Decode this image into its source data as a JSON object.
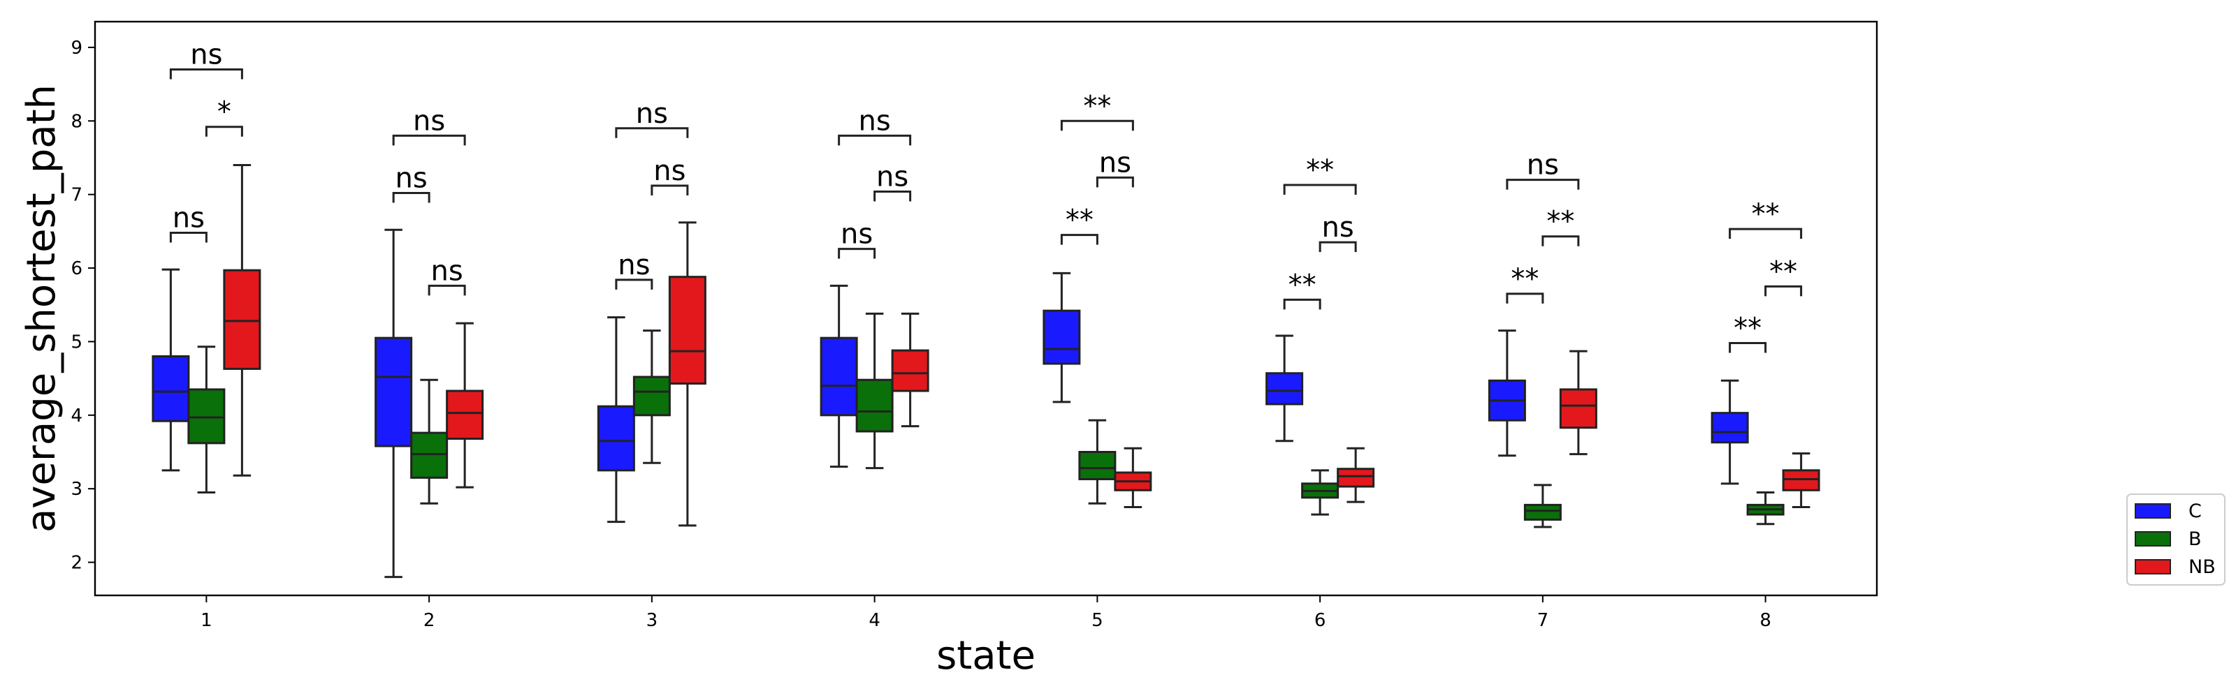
{
  "chart_data": {
    "type": "box",
    "xlabel": "state",
    "ylabel": "average_shortest_path",
    "ylim": [
      1.55,
      9.35
    ],
    "yticks": [
      "2",
      "3",
      "4",
      "5",
      "6",
      "7",
      "8",
      "9"
    ],
    "categories": [
      "1",
      "2",
      "3",
      "4",
      "5",
      "6",
      "7",
      "8"
    ],
    "grid": false,
    "legend_position": "outside-right-bottom",
    "series": [
      {
        "name": "C",
        "color": "#1a1aff",
        "boxes": [
          {
            "whislo": 3.25,
            "q1": 3.92,
            "med": 4.32,
            "q3": 4.8,
            "whishi": 5.98
          },
          {
            "whislo": 1.8,
            "q1": 3.58,
            "med": 4.52,
            "q3": 5.05,
            "whishi": 6.52
          },
          {
            "whislo": 2.55,
            "q1": 3.25,
            "med": 3.65,
            "q3": 4.12,
            "whishi": 5.33
          },
          {
            "whislo": 3.3,
            "q1": 4.0,
            "med": 4.4,
            "q3": 5.05,
            "whishi": 5.76
          },
          {
            "whislo": 4.18,
            "q1": 4.7,
            "med": 4.9,
            "q3": 5.42,
            "whishi": 5.93
          },
          {
            "whislo": 3.65,
            "q1": 4.15,
            "med": 4.33,
            "q3": 4.57,
            "whishi": 5.08
          },
          {
            "whislo": 3.45,
            "q1": 3.93,
            "med": 4.2,
            "q3": 4.47,
            "whishi": 5.15
          },
          {
            "whislo": 3.07,
            "q1": 3.63,
            "med": 3.77,
            "q3": 4.03,
            "whishi": 4.47
          }
        ]
      },
      {
        "name": "B",
        "color": "#0a700a",
        "boxes": [
          {
            "whislo": 2.95,
            "q1": 3.62,
            "med": 3.97,
            "q3": 4.35,
            "whishi": 4.93
          },
          {
            "whislo": 2.8,
            "q1": 3.15,
            "med": 3.47,
            "q3": 3.76,
            "whishi": 4.48
          },
          {
            "whislo": 3.35,
            "q1": 4.0,
            "med": 4.32,
            "q3": 4.52,
            "whishi": 5.15
          },
          {
            "whislo": 3.28,
            "q1": 3.78,
            "med": 4.05,
            "q3": 4.48,
            "whishi": 5.38
          },
          {
            "whislo": 2.8,
            "q1": 3.13,
            "med": 3.28,
            "q3": 3.5,
            "whishi": 3.93
          },
          {
            "whislo": 2.65,
            "q1": 2.88,
            "med": 2.97,
            "q3": 3.07,
            "whishi": 3.25
          },
          {
            "whislo": 2.48,
            "q1": 2.58,
            "med": 2.7,
            "q3": 2.78,
            "whishi": 3.05
          },
          {
            "whislo": 2.52,
            "q1": 2.65,
            "med": 2.72,
            "q3": 2.78,
            "whishi": 2.95
          }
        ]
      },
      {
        "name": "NB",
        "color": "#e3181c",
        "boxes": [
          {
            "whislo": 3.18,
            "q1": 4.63,
            "med": 5.28,
            "q3": 5.97,
            "whishi": 7.4
          },
          {
            "whislo": 3.02,
            "q1": 3.68,
            "med": 4.03,
            "q3": 4.33,
            "whishi": 5.25
          },
          {
            "whislo": 2.5,
            "q1": 4.43,
            "med": 4.87,
            "q3": 5.88,
            "whishi": 6.62
          },
          {
            "whislo": 3.85,
            "q1": 4.33,
            "med": 4.57,
            "q3": 4.88,
            "whishi": 5.38
          },
          {
            "whislo": 2.75,
            "q1": 2.98,
            "med": 3.1,
            "q3": 3.22,
            "whishi": 3.55
          },
          {
            "whislo": 2.82,
            "q1": 3.03,
            "med": 3.17,
            "q3": 3.27,
            "whishi": 3.55
          },
          {
            "whislo": 3.47,
            "q1": 3.83,
            "med": 4.13,
            "q3": 4.35,
            "whishi": 4.87
          },
          {
            "whislo": 2.75,
            "q1": 2.98,
            "med": 3.13,
            "q3": 3.25,
            "whishi": 3.48
          }
        ]
      }
    ],
    "annotations": [
      {
        "category": "1",
        "from": "C",
        "to": "B",
        "label": "ns",
        "y": 6.48
      },
      {
        "category": "1",
        "from": "B",
        "to": "NB",
        "label": "*",
        "y": 7.92
      },
      {
        "category": "1",
        "from": "C",
        "to": "NB",
        "label": "ns",
        "y": 8.7
      },
      {
        "category": "2",
        "from": "C",
        "to": "B",
        "label": "ns",
        "y": 7.02
      },
      {
        "category": "2",
        "from": "B",
        "to": "NB",
        "label": "ns",
        "y": 5.76
      },
      {
        "category": "2",
        "from": "C",
        "to": "NB",
        "label": "ns",
        "y": 7.8
      },
      {
        "category": "3",
        "from": "C",
        "to": "B",
        "label": "ns",
        "y": 5.84
      },
      {
        "category": "3",
        "from": "B",
        "to": "NB",
        "label": "ns",
        "y": 7.12
      },
      {
        "category": "3",
        "from": "C",
        "to": "NB",
        "label": "ns",
        "y": 7.9
      },
      {
        "category": "4",
        "from": "C",
        "to": "B",
        "label": "ns",
        "y": 6.26
      },
      {
        "category": "4",
        "from": "B",
        "to": "NB",
        "label": "ns",
        "y": 7.04
      },
      {
        "category": "4",
        "from": "C",
        "to": "NB",
        "label": "ns",
        "y": 7.8
      },
      {
        "category": "5",
        "from": "C",
        "to": "B",
        "label": "**",
        "y": 6.45
      },
      {
        "category": "5",
        "from": "B",
        "to": "NB",
        "label": "ns",
        "y": 7.23
      },
      {
        "category": "5",
        "from": "C",
        "to": "NB",
        "label": "**",
        "y": 8.0
      },
      {
        "category": "6",
        "from": "C",
        "to": "B",
        "label": "**",
        "y": 5.57
      },
      {
        "category": "6",
        "from": "B",
        "to": "NB",
        "label": "ns",
        "y": 6.35
      },
      {
        "category": "6",
        "from": "C",
        "to": "NB",
        "label": "**",
        "y": 7.13
      },
      {
        "category": "7",
        "from": "C",
        "to": "B",
        "label": "**",
        "y": 5.65
      },
      {
        "category": "7",
        "from": "B",
        "to": "NB",
        "label": "**",
        "y": 6.43
      },
      {
        "category": "7",
        "from": "C",
        "to": "NB",
        "label": "ns",
        "y": 7.2
      },
      {
        "category": "8",
        "from": "C",
        "to": "B",
        "label": "**",
        "y": 4.98
      },
      {
        "category": "8",
        "from": "B",
        "to": "NB",
        "label": "**",
        "y": 5.75
      },
      {
        "category": "8",
        "from": "C",
        "to": "NB",
        "label": "**",
        "y": 6.53
      }
    ]
  }
}
